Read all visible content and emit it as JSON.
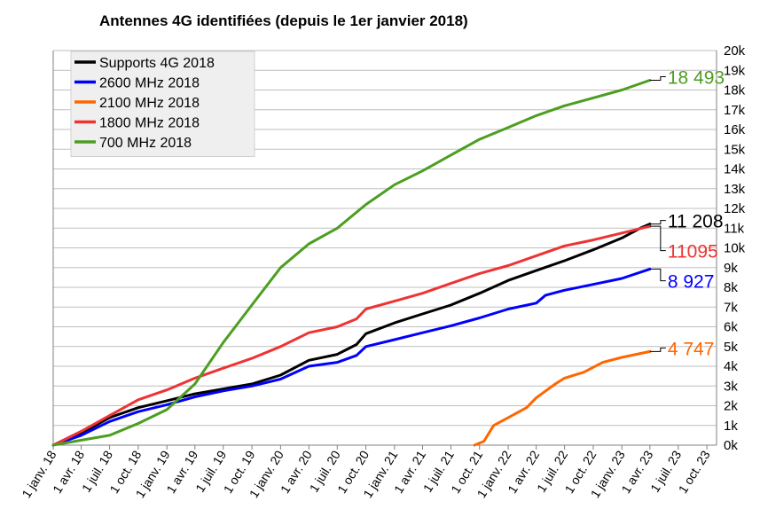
{
  "chart_data": {
    "type": "line",
    "title": "Antennes 4G identifiées (depuis le 1er janvier 2018)",
    "xlabel": "",
    "ylabel": "",
    "x_range": [
      "2018-01-01",
      "2023-11-01"
    ],
    "ylim": [
      0,
      20000
    ],
    "y_ticks": [
      "0k",
      "1k",
      "2k",
      "3k",
      "4k",
      "5k",
      "6k",
      "7k",
      "8k",
      "9k",
      "10k",
      "11k",
      "12k",
      "13k",
      "14k",
      "15k",
      "16k",
      "17k",
      "18k",
      "19k",
      "20k"
    ],
    "x_ticks": [
      {
        "date": "2018-01-01",
        "label": "1 janv. 18"
      },
      {
        "date": "2018-04-01",
        "label": "1 avr. 18"
      },
      {
        "date": "2018-07-01",
        "label": "1 juil. 18"
      },
      {
        "date": "2018-10-01",
        "label": "1 oct. 18"
      },
      {
        "date": "2019-01-01",
        "label": "1 janv. 19"
      },
      {
        "date": "2019-04-01",
        "label": "1 avr. 19"
      },
      {
        "date": "2019-07-01",
        "label": "1 juil. 19"
      },
      {
        "date": "2019-10-01",
        "label": "1 oct. 19"
      },
      {
        "date": "2020-01-01",
        "label": "1 janv. 20"
      },
      {
        "date": "2020-04-01",
        "label": "1 avr. 20"
      },
      {
        "date": "2020-07-01",
        "label": "1 juil. 20"
      },
      {
        "date": "2020-10-01",
        "label": "1 oct. 20"
      },
      {
        "date": "2021-01-01",
        "label": "1 janv. 21"
      },
      {
        "date": "2021-04-01",
        "label": "1 avr. 21"
      },
      {
        "date": "2021-07-01",
        "label": "1 juil. 21"
      },
      {
        "date": "2021-10-01",
        "label": "1 oct. 21"
      },
      {
        "date": "2022-01-01",
        "label": "1 janv. 22"
      },
      {
        "date": "2022-04-01",
        "label": "1 avr. 22"
      },
      {
        "date": "2022-07-01",
        "label": "1 juil. 22"
      },
      {
        "date": "2022-10-01",
        "label": "1 oct. 22"
      },
      {
        "date": "2023-01-01",
        "label": "1 janv. 23"
      },
      {
        "date": "2023-04-01",
        "label": "1 avr. 23"
      },
      {
        "date": "2023-07-01",
        "label": "1 juil. 23"
      },
      {
        "date": "2023-10-01",
        "label": "1 oct. 23"
      }
    ],
    "grid": true,
    "legend_position": "top-left",
    "series": [
      {
        "name": "Supports 4G 2018",
        "color": "#000000",
        "end_label": "11 208",
        "points": [
          [
            "2018-01-01",
            0
          ],
          [
            "2018-04-01",
            600
          ],
          [
            "2018-07-01",
            1400
          ],
          [
            "2018-10-01",
            1900
          ],
          [
            "2019-01-01",
            2250
          ],
          [
            "2019-04-01",
            2600
          ],
          [
            "2019-07-01",
            2850
          ],
          [
            "2019-10-01",
            3100
          ],
          [
            "2020-01-01",
            3550
          ],
          [
            "2020-04-01",
            4300
          ],
          [
            "2020-07-01",
            4600
          ],
          [
            "2020-09-01",
            5100
          ],
          [
            "2020-10-01",
            5650
          ],
          [
            "2021-01-01",
            6200
          ],
          [
            "2021-04-01",
            6650
          ],
          [
            "2021-07-01",
            7100
          ],
          [
            "2021-10-01",
            7700
          ],
          [
            "2022-01-01",
            8350
          ],
          [
            "2022-04-01",
            8850
          ],
          [
            "2022-07-01",
            9350
          ],
          [
            "2022-10-01",
            9900
          ],
          [
            "2023-01-01",
            10500
          ],
          [
            "2023-03-01",
            11000
          ],
          [
            "2023-04-01",
            11208
          ]
        ]
      },
      {
        "name": "2600 MHz 2018",
        "color": "#0000ff",
        "end_label": "8 927",
        "points": [
          [
            "2018-01-01",
            0
          ],
          [
            "2018-04-01",
            500
          ],
          [
            "2018-07-01",
            1200
          ],
          [
            "2018-10-01",
            1700
          ],
          [
            "2019-01-01",
            2050
          ],
          [
            "2019-04-01",
            2450
          ],
          [
            "2019-07-01",
            2750
          ],
          [
            "2019-10-01",
            3000
          ],
          [
            "2020-01-01",
            3350
          ],
          [
            "2020-04-01",
            4000
          ],
          [
            "2020-07-01",
            4200
          ],
          [
            "2020-09-01",
            4550
          ],
          [
            "2020-10-01",
            5000
          ],
          [
            "2021-01-01",
            5350
          ],
          [
            "2021-04-01",
            5700
          ],
          [
            "2021-07-01",
            6050
          ],
          [
            "2021-10-01",
            6450
          ],
          [
            "2022-01-01",
            6900
          ],
          [
            "2022-04-01",
            7200
          ],
          [
            "2022-05-01",
            7600
          ],
          [
            "2022-07-01",
            7850
          ],
          [
            "2022-10-01",
            8150
          ],
          [
            "2023-01-01",
            8450
          ],
          [
            "2023-04-01",
            8927
          ]
        ]
      },
      {
        "name": "2100 MHz 2018",
        "color": "#ff6600",
        "end_label": "4 747",
        "points": [
          [
            "2021-09-15",
            0
          ],
          [
            "2021-10-15",
            200
          ],
          [
            "2021-11-15",
            1000
          ],
          [
            "2022-01-01",
            1400
          ],
          [
            "2022-03-01",
            1900
          ],
          [
            "2022-04-01",
            2400
          ],
          [
            "2022-06-01",
            3100
          ],
          [
            "2022-07-01",
            3400
          ],
          [
            "2022-09-01",
            3700
          ],
          [
            "2022-11-01",
            4200
          ],
          [
            "2023-01-01",
            4450
          ],
          [
            "2023-04-01",
            4747
          ]
        ]
      },
      {
        "name": "1800 MHz 2018",
        "color": "#ee3333",
        "end_label": "11095",
        "points": [
          [
            "2018-01-01",
            0
          ],
          [
            "2018-04-01",
            700
          ],
          [
            "2018-07-01",
            1500
          ],
          [
            "2018-10-01",
            2300
          ],
          [
            "2019-01-01",
            2800
          ],
          [
            "2019-04-01",
            3400
          ],
          [
            "2019-07-01",
            3900
          ],
          [
            "2019-10-01",
            4400
          ],
          [
            "2020-01-01",
            5000
          ],
          [
            "2020-04-01",
            5700
          ],
          [
            "2020-07-01",
            6000
          ],
          [
            "2020-09-01",
            6400
          ],
          [
            "2020-10-01",
            6900
          ],
          [
            "2021-01-01",
            7300
          ],
          [
            "2021-04-01",
            7700
          ],
          [
            "2021-07-01",
            8200
          ],
          [
            "2021-10-01",
            8700
          ],
          [
            "2022-01-01",
            9100
          ],
          [
            "2022-04-01",
            9600
          ],
          [
            "2022-07-01",
            10100
          ],
          [
            "2022-10-01",
            10400
          ],
          [
            "2023-01-01",
            10750
          ],
          [
            "2023-04-01",
            11095
          ]
        ]
      },
      {
        "name": "700 MHz 2018",
        "color": "#4c9e21",
        "end_label": "18 493",
        "points": [
          [
            "2018-01-01",
            0
          ],
          [
            "2018-04-01",
            250
          ],
          [
            "2018-07-01",
            500
          ],
          [
            "2018-10-01",
            1100
          ],
          [
            "2019-01-01",
            1800
          ],
          [
            "2019-04-01",
            3100
          ],
          [
            "2019-07-01",
            5200
          ],
          [
            "2019-10-01",
            7100
          ],
          [
            "2020-01-01",
            9000
          ],
          [
            "2020-04-01",
            10200
          ],
          [
            "2020-07-01",
            11000
          ],
          [
            "2020-10-01",
            12200
          ],
          [
            "2021-01-01",
            13200
          ],
          [
            "2021-04-01",
            13900
          ],
          [
            "2021-07-01",
            14700
          ],
          [
            "2021-10-01",
            15500
          ],
          [
            "2022-01-01",
            16100
          ],
          [
            "2022-04-01",
            16700
          ],
          [
            "2022-07-01",
            17200
          ],
          [
            "2022-10-01",
            17600
          ],
          [
            "2023-01-01",
            18000
          ],
          [
            "2023-04-01",
            18493
          ]
        ]
      }
    ]
  }
}
